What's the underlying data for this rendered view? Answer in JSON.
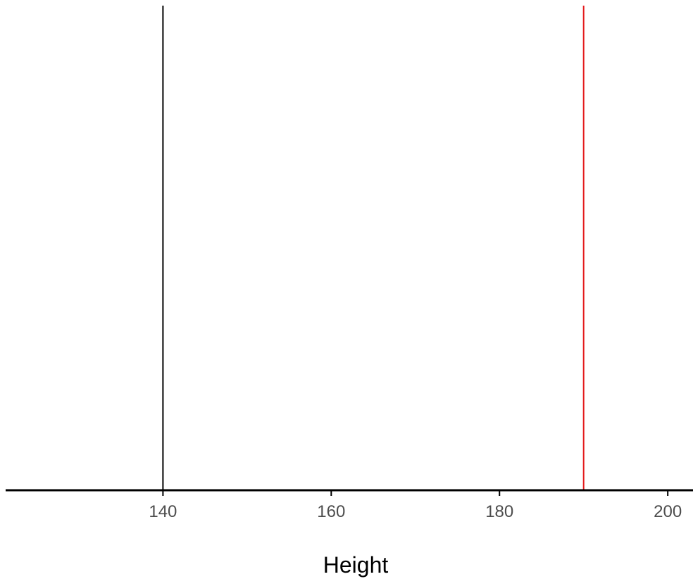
{
  "chart_data": {
    "type": "line",
    "title": "",
    "xlabel": "Height",
    "ylabel": "",
    "xlim": [
      121.3,
      203.0
    ],
    "x_ticks": [
      140,
      160,
      180,
      200
    ],
    "tick_labels": [
      "140",
      "160",
      "180",
      "200"
    ],
    "grid": false,
    "legend": "none",
    "vlines": [
      {
        "x": 140,
        "color": "#000000"
      },
      {
        "x": 190,
        "color": "#e41a1c"
      }
    ],
    "axis_color": "#000000"
  }
}
